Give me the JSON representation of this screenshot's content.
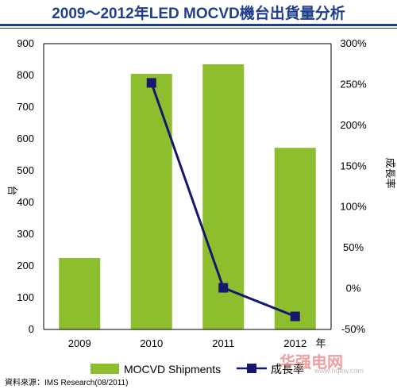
{
  "title": "2009～2012年LED MOCVD機台出貨量分析",
  "source": "資料來源：IMS Research(08/2011)",
  "colors": {
    "bar": "#8cbe2d",
    "line": "#15186e",
    "title": "#1f3f8a"
  },
  "watermark": {
    "main": "华强电网",
    "sub": "www.hqew.com"
  },
  "chart_data": {
    "type": "bar",
    "categories": [
      "2009",
      "2010",
      "2011",
      "2012"
    ],
    "x_unit_label": "年",
    "series": [
      {
        "name": "MOCVD Shipments",
        "type": "bar",
        "axis": "left",
        "values": [
          225,
          805,
          835,
          572
        ]
      },
      {
        "name": "成長率",
        "type": "line",
        "axis": "right",
        "values": [
          null,
          252,
          1,
          -34
        ]
      }
    ],
    "ylabel": "台",
    "y2label": "成長率",
    "ylim": [
      0,
      900
    ],
    "y2lim": [
      -50,
      300
    ],
    "yticks": [
      "0",
      "100",
      "200",
      "300",
      "400",
      "500",
      "600",
      "700",
      "800",
      "900"
    ],
    "y2ticks": [
      "-50%",
      "0%",
      "50%",
      "100%",
      "150%",
      "200%",
      "250%",
      "300%"
    ],
    "grid": false,
    "legend_position": "bottom"
  }
}
